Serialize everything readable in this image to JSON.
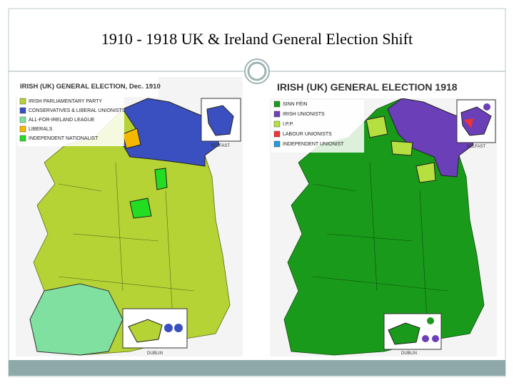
{
  "slide": {
    "title": "1910 - 1918 UK & Ireland General Election Shift"
  },
  "maps": [
    {
      "title": "IRISH (UK) GENERAL ELECTION, Dec. 1910",
      "legend": [
        {
          "label": "IRISH PARLIAMENTARY PARTY",
          "color": "#b5d334"
        },
        {
          "label": "CONSERVATIVES & LIBERAL UNIONISTS",
          "color": "#3a4fc0"
        },
        {
          "label": "ALL-FOR-IRELAND LEAGUE",
          "color": "#7fe0a0"
        },
        {
          "label": "LIBERALS",
          "color": "#f5b800"
        },
        {
          "label": "INDEPENDENT NATIONALIST",
          "color": "#22dd22"
        }
      ],
      "insets": [
        "BELFAST",
        "DUBLIN"
      ]
    },
    {
      "title": "IRISH (UK) GENERAL ELECTION 1918",
      "legend": [
        {
          "label": "SINN FÉIN",
          "color": "#1a9a1a"
        },
        {
          "label": "IRISH UNIONISTS",
          "color": "#6a3fb8"
        },
        {
          "label": "I.P.P.",
          "color": "#b5e040"
        },
        {
          "label": "LABOUR UNIONISTS",
          "color": "#ee3333"
        },
        {
          "label": "INDEPENDENT UNIONIST",
          "color": "#2299dd"
        }
      ],
      "insets": [
        "BELFAST",
        "DUBLIN"
      ]
    }
  ]
}
